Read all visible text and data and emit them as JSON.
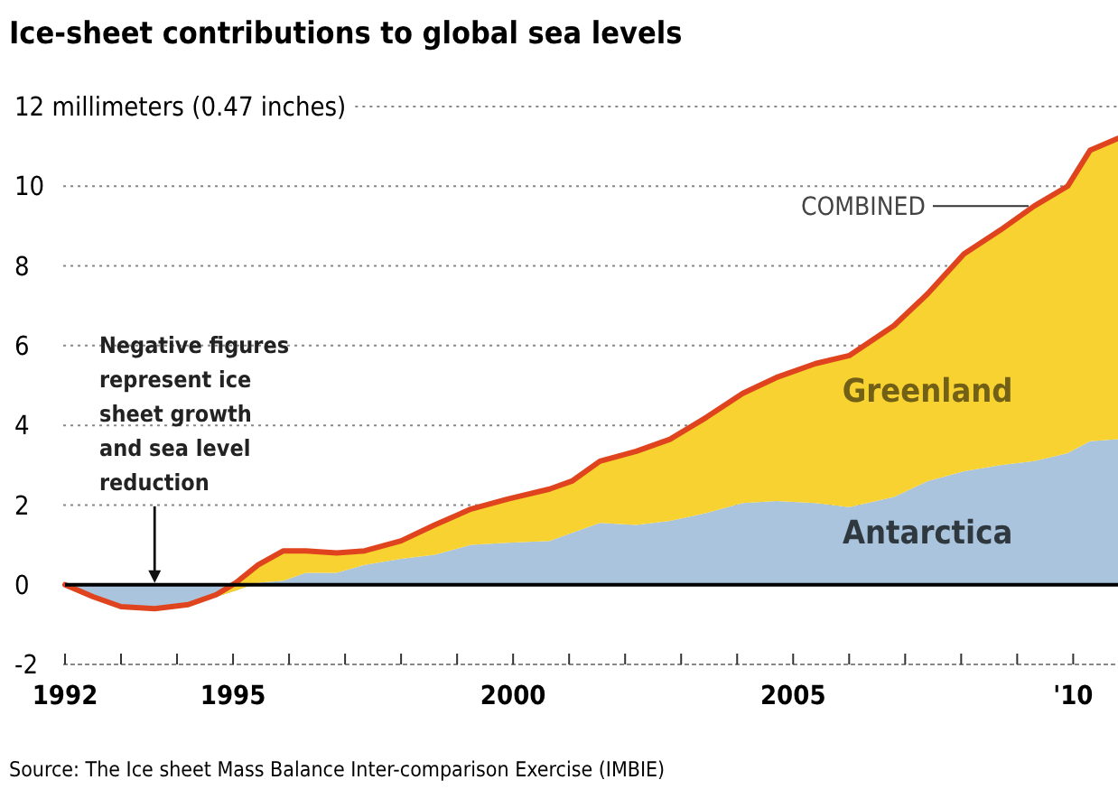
{
  "chart_data": {
    "type": "area",
    "title": "Ice-sheet contributions to global sea levels",
    "stacked": true,
    "legend": false,
    "grid": "y",
    "x": [
      1992,
      1992.5,
      1993,
      1993.6,
      1994.2,
      1994.7,
      1995.05,
      1995.45,
      1995.9,
      1996.3,
      1996.85,
      1997.35,
      1998,
      1998.6,
      1999.25,
      1999.9,
      2000.65,
      2001.05,
      2001.55,
      2002.2,
      2002.8,
      2003.45,
      2004.1,
      2004.7,
      2005.4,
      2006,
      2006.8,
      2007.4,
      2008.05,
      2008.7,
      2009.3,
      2009.9,
      2010.3,
      2010.8
    ],
    "series": [
      {
        "name": "Antarctica",
        "color": "#a9c4dc",
        "values": [
          0,
          -0.35,
          -0.5,
          -0.55,
          -0.45,
          -0.3,
          -0.15,
          0.05,
          0.1,
          0.3,
          0.3,
          0.5,
          0.65,
          0.75,
          1.0,
          1.05,
          1.1,
          1.3,
          1.55,
          1.5,
          1.6,
          1.8,
          2.05,
          2.1,
          2.05,
          1.95,
          2.2,
          2.6,
          2.85,
          3.0,
          3.1,
          3.3,
          3.6,
          3.65
        ]
      },
      {
        "name": "Greenland",
        "color": "#f7d230",
        "values": [
          0,
          0.05,
          -0.05,
          -0.05,
          -0.05,
          0.05,
          0.2,
          0.45,
          0.75,
          0.55,
          0.5,
          0.35,
          0.45,
          0.75,
          0.9,
          1.1,
          1.3,
          1.3,
          1.55,
          1.85,
          2.05,
          2.4,
          2.75,
          3.1,
          3.5,
          3.8,
          4.3,
          4.7,
          5.45,
          5.9,
          6.4,
          6.7,
          7.3,
          7.55
        ]
      }
    ],
    "xlim": [
      1992,
      2010.8
    ],
    "xticks": [
      1992,
      {
        "value": 1993,
        "label": null
      },
      {
        "value": 1994,
        "label": null
      },
      1995,
      {
        "value": 1996,
        "label": null
      },
      {
        "value": 1997,
        "label": null
      },
      {
        "value": 1998,
        "label": null
      },
      {
        "value": 1999,
        "label": null
      },
      2000,
      {
        "value": 2001,
        "label": null
      },
      {
        "value": 2002,
        "label": null
      },
      {
        "value": 2003,
        "label": null
      },
      {
        "value": 2004,
        "label": null
      },
      2005,
      {
        "value": 2006,
        "label": null
      },
      {
        "value": 2007,
        "label": null
      },
      {
        "value": 2008,
        "label": null
      },
      {
        "value": 2009,
        "label": null
      },
      {
        "value": 2010,
        "label": "'10"
      }
    ],
    "ylim": [
      -2,
      12
    ],
    "yticks": [
      -2,
      0,
      2,
      4,
      6,
      8,
      10,
      {
        "value": 12,
        "label": "12 millimeters (0.47 inches)"
      }
    ],
    "ref_lines": [
      {
        "axis": "y",
        "value": 0,
        "color": "#000000"
      }
    ],
    "annotations": [
      {
        "text": "COMBINED",
        "x": 2009.3,
        "y": 9.5
      },
      {
        "text": "Negative figures represent ice sheet growth and sea level reduction",
        "x": 1993.6,
        "y": 0
      },
      "Source: The Ice sheet Mass Balance Inter-comparison Exercise (IMBIE)"
    ]
  }
}
